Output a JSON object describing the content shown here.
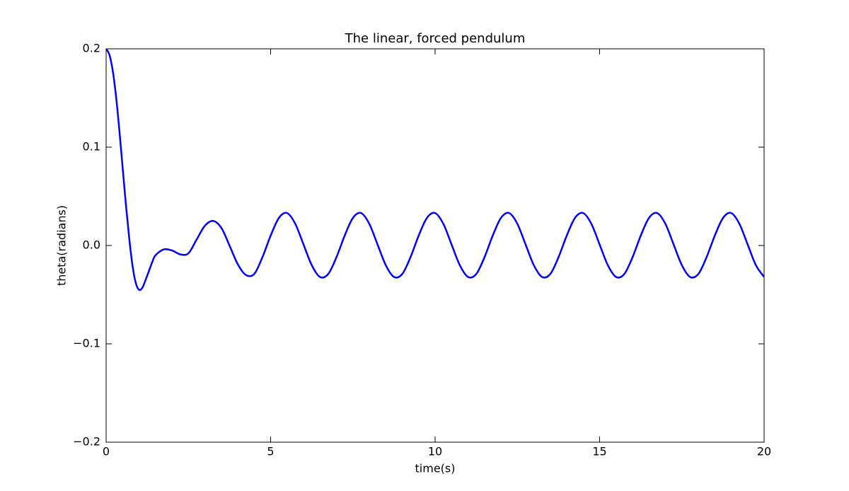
{
  "chart_data": {
    "type": "line",
    "title": "The linear, forced pendulum",
    "x_label": "time(s)",
    "y_label": "theta(radians)",
    "x": [
      0,
      0.1,
      0.2,
      0.3,
      0.4,
      0.5,
      0.6,
      0.7,
      0.8,
      0.9,
      1.0,
      1.1,
      1.2,
      1.3,
      1.4,
      1.5,
      1.75,
      2,
      2.25,
      2.5,
      2.75,
      3,
      3.25,
      3.5,
      3.75,
      4,
      4.25,
      4.5,
      4.75,
      5,
      5.25,
      5.5,
      5.75,
      6,
      6.25,
      6.5,
      6.75,
      7,
      7.25,
      7.5,
      7.75,
      8,
      8.25,
      8.5,
      8.75,
      9,
      9.25,
      9.5,
      9.75,
      10,
      10.25,
      10.5,
      10.75,
      11,
      11.25,
      11.5,
      11.75,
      12,
      12.25,
      12.5,
      12.75,
      13,
      13.25,
      13.5,
      13.75,
      14,
      14.25,
      14.5,
      14.75,
      15,
      15.25,
      15.5,
      15.75,
      16,
      16.25,
      16.5,
      16.75,
      17,
      17.25,
      17.5,
      17.75,
      18,
      18.25,
      18.5,
      18.75,
      19,
      19.25,
      19.5,
      19.75,
      20
    ],
    "series": [
      {
        "color": "#0000ff",
        "values": [
          0.2,
          0.194,
          0.178,
          0.152,
          0.118,
          0.08,
          0.042,
          0.008,
          -0.02,
          -0.038,
          -0.045,
          -0.043,
          -0.035,
          -0.026,
          -0.017,
          -0.01,
          -0.004,
          -0.005,
          -0.009,
          -0.008,
          0.006,
          0.02,
          0.025,
          0.018,
          0.0,
          -0.019,
          -0.03,
          -0.029,
          -0.012,
          0.01,
          0.028,
          0.033,
          0.022,
          0.001,
          -0.02,
          -0.032,
          -0.029,
          -0.012,
          0.01,
          0.028,
          0.033,
          0.022,
          0.001,
          -0.02,
          -0.032,
          -0.029,
          -0.012,
          0.01,
          0.028,
          0.033,
          0.022,
          0.001,
          -0.02,
          -0.032,
          -0.029,
          -0.012,
          0.01,
          0.028,
          0.033,
          0.022,
          0.001,
          -0.02,
          -0.032,
          -0.029,
          -0.012,
          0.01,
          0.028,
          0.033,
          0.022,
          0.001,
          -0.02,
          -0.032,
          -0.029,
          -0.012,
          0.01,
          0.028,
          0.033,
          0.022,
          0.001,
          -0.02,
          -0.032,
          -0.029,
          -0.012,
          0.01,
          0.028,
          0.033,
          0.022,
          0.001,
          -0.02,
          -0.032
        ]
      }
    ],
    "xlim": [
      0,
      20
    ],
    "xticks": [
      0,
      5,
      10,
      15,
      20
    ],
    "ylim": [
      -0.2,
      0.2
    ],
    "yticks": [
      {
        "value": -0.2,
        "label": "−0.2"
      },
      {
        "value": -0.1,
        "label": "−0.1"
      },
      {
        "value": 0,
        "label": "0.0"
      },
      0.1,
      0.2
    ],
    "grid": false
  }
}
